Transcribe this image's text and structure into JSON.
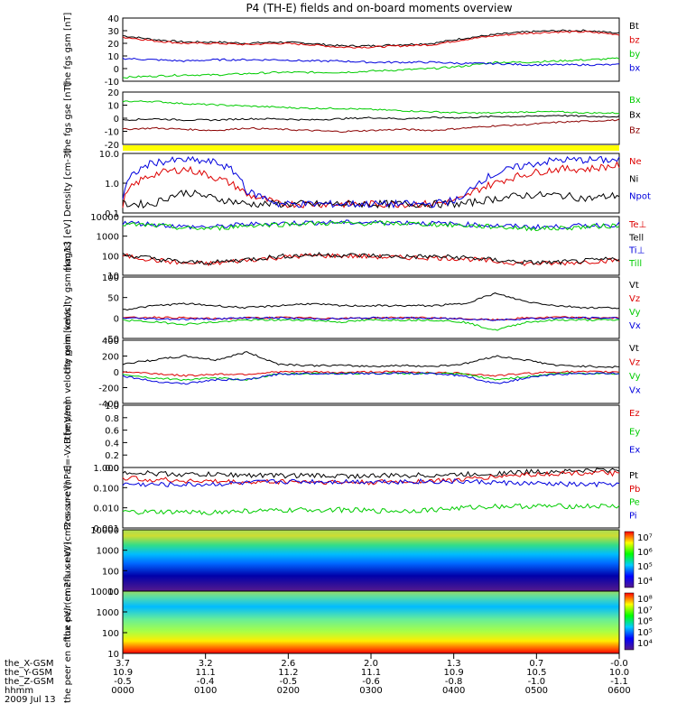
{
  "title": "P4 (TH-E) fields and on-board moments overview",
  "colors": {
    "black": "#000000",
    "red": "#dd0000",
    "blue": "#0000dd",
    "green": "#00cc00",
    "darkred": "#8b0000",
    "yellow": "#ffff00"
  },
  "chart_data": [
    {
      "type": "line",
      "name": "fgs",
      "ylabel": "the fgs gsm [nT]",
      "ylim": [
        -10,
        40
      ],
      "yticks": [
        "40",
        "30",
        "20",
        "10",
        "0",
        "-10"
      ],
      "series": [
        {
          "name": "Bt",
          "color": "#000000",
          "values": [
            26,
            23,
            21,
            21,
            20,
            21,
            20,
            18,
            18,
            19,
            20,
            24,
            27,
            29,
            30,
            30,
            28
          ]
        },
        {
          "name": "bz",
          "color": "#dd0000",
          "values": [
            25,
            22,
            20,
            20,
            19,
            20,
            19,
            17,
            17,
            18,
            19,
            23,
            26,
            28,
            29,
            29,
            27
          ]
        },
        {
          "name": "by",
          "color": "#00cc00",
          "values": [
            -7,
            -6,
            -5,
            -5,
            -4,
            -3,
            -3,
            -3,
            -2,
            -1,
            0,
            2,
            5,
            5,
            6,
            7,
            8
          ]
        },
        {
          "name": "bx",
          "color": "#0000dd",
          "values": [
            8,
            7,
            6,
            7,
            7,
            7,
            6,
            6,
            5,
            5,
            5,
            4,
            4,
            3,
            3,
            3,
            3
          ]
        }
      ]
    },
    {
      "type": "line",
      "name": "fgs-gse",
      "ylabel": "the fgs gse [nT]",
      "ylim": [
        -25,
        20
      ],
      "yticks": [
        "20",
        "10",
        "0",
        "-10",
        "-20"
      ],
      "series": [
        {
          "name": "Bx",
          "color": "#00cc00",
          "values": [
            12,
            12,
            10,
            9,
            8,
            7,
            6,
            6,
            5,
            4,
            3,
            2,
            2,
            3,
            3,
            2,
            2
          ]
        },
        {
          "name": "Bx",
          "color": "#000000",
          "values": [
            -4,
            -3,
            -4,
            -4,
            -3,
            -3,
            -4,
            -3,
            -2,
            -3,
            -2,
            -2,
            -1,
            -1,
            0,
            -1,
            -1
          ]
        },
        {
          "name": "Bz",
          "color": "#8b0000",
          "values": [
            -12,
            -11,
            -12,
            -13,
            -11,
            -12,
            -13,
            -14,
            -13,
            -12,
            -13,
            -11,
            -9,
            -8,
            -6,
            -5,
            -4
          ]
        }
      ]
    },
    {
      "type": "line",
      "name": "density",
      "ylabel": "Density [cm-3]",
      "ylim": [
        0.1,
        10
      ],
      "log": true,
      "yticks": [
        "10.0",
        "1.0",
        "0.1"
      ],
      "series": [
        {
          "name": "Ne",
          "color": "#dd0000",
          "values": [
            0.2,
            2.0,
            3.0,
            1.5,
            0.4,
            0.2,
            0.2,
            0.2,
            0.2,
            0.2,
            0.2,
            0.3,
            1.0,
            2.0,
            3.0,
            3.0,
            4.0
          ]
        },
        {
          "name": "Ni",
          "color": "#000000",
          "values": [
            0.2,
            0.2,
            0.5,
            0.3,
            0.2,
            0.2,
            0.2,
            0.2,
            0.2,
            0.2,
            0.2,
            0.2,
            0.3,
            0.4,
            0.4,
            0.3,
            0.4
          ]
        },
        {
          "name": "Npot",
          "color": "#0000dd",
          "values": [
            0.3,
            5.0,
            6.0,
            5.0,
            0.5,
            0.2,
            0.2,
            0.2,
            0.2,
            0.2,
            0.2,
            0.3,
            2.0,
            4.0,
            6.0,
            6.0,
            6.0
          ]
        }
      ]
    },
    {
      "type": "line",
      "name": "temperature",
      "ylabel": "mag13 [eV]",
      "ylim": [
        10,
        10000
      ],
      "log": true,
      "yticks": [
        "10000",
        "1000",
        "100",
        "10"
      ],
      "series": [
        {
          "name": "Te⊥",
          "color": "#dd0000",
          "values": [
            100,
            60,
            40,
            40,
            60,
            80,
            100,
            100,
            90,
            80,
            80,
            70,
            50,
            40,
            40,
            50,
            60
          ]
        },
        {
          "name": "Tell",
          "color": "#000000",
          "values": [
            110,
            70,
            45,
            45,
            65,
            90,
            110,
            110,
            100,
            90,
            90,
            80,
            60,
            45,
            45,
            55,
            70
          ]
        },
        {
          "name": "Ti⊥",
          "color": "#0000dd",
          "values": [
            5000,
            4000,
            3000,
            3000,
            4000,
            4500,
            5000,
            5000,
            5000,
            5000,
            4500,
            4000,
            3500,
            3000,
            3000,
            3500,
            4000
          ]
        },
        {
          "name": "Till",
          "color": "#00cc00",
          "values": [
            4000,
            3500,
            2500,
            2500,
            3500,
            4000,
            4500,
            4500,
            4500,
            4500,
            4000,
            3500,
            3000,
            2500,
            2500,
            3000,
            3500
          ]
        }
      ]
    },
    {
      "type": "line",
      "name": "peim-velocity",
      "ylabel": "the peim velocity gsm [km/s]",
      "ylim": [
        -50,
        100
      ],
      "yticks": [
        "100",
        "50",
        "0",
        "-50"
      ],
      "series": [
        {
          "name": "Vt",
          "color": "#000000",
          "values": [
            20,
            30,
            35,
            30,
            25,
            30,
            35,
            30,
            30,
            30,
            30,
            35,
            60,
            40,
            30,
            25,
            25
          ]
        },
        {
          "name": "Vz",
          "color": "#dd0000",
          "values": [
            0,
            2,
            0,
            -2,
            0,
            1,
            0,
            -1,
            0,
            1,
            0,
            -2,
            -5,
            0,
            2,
            0,
            0
          ]
        },
        {
          "name": "Vy",
          "color": "#00cc00",
          "values": [
            -5,
            -10,
            -15,
            -10,
            -5,
            -5,
            -5,
            -10,
            -5,
            -5,
            -5,
            -10,
            -30,
            -10,
            -5,
            -5,
            -5
          ]
        },
        {
          "name": "Vx",
          "color": "#0000dd",
          "values": [
            0,
            -2,
            -3,
            -2,
            0,
            0,
            -2,
            -2,
            0,
            0,
            -1,
            -2,
            -5,
            -2,
            0,
            0,
            0
          ]
        }
      ]
    },
    {
      "type": "line",
      "name": "peem-velocity",
      "ylabel": "the peem velocity gsm [km/s]",
      "ylim": [
        -400,
        400
      ],
      "yticks": [
        "400",
        "200",
        "0",
        "-200",
        "-400"
      ],
      "series": [
        {
          "name": "Vt",
          "color": "#000000",
          "values": [
            100,
            150,
            200,
            150,
            250,
            100,
            80,
            80,
            70,
            80,
            70,
            100,
            200,
            150,
            80,
            70,
            60
          ]
        },
        {
          "name": "Vz",
          "color": "#dd0000",
          "values": [
            0,
            -20,
            -50,
            -30,
            -30,
            0,
            0,
            -10,
            0,
            0,
            -10,
            -20,
            -50,
            -20,
            0,
            0,
            0
          ]
        },
        {
          "name": "Vy",
          "color": "#00cc00",
          "values": [
            -30,
            -80,
            -100,
            -80,
            -100,
            -30,
            -20,
            -20,
            -20,
            -20,
            -20,
            -30,
            -100,
            -60,
            -20,
            -20,
            -20
          ]
        },
        {
          "name": "Vx",
          "color": "#0000dd",
          "values": [
            -50,
            -120,
            -150,
            -100,
            -100,
            -30,
            -20,
            -20,
            -20,
            -20,
            -20,
            -50,
            -150,
            -80,
            -30,
            -20,
            -20
          ]
        }
      ]
    },
    {
      "type": "line",
      "name": "efield",
      "ylabel": "E=-VxB [mV/m]",
      "ylim": [
        0,
        1
      ],
      "yticks": [
        "1.0",
        "0.8",
        "0.6",
        "0.4",
        "0.2",
        "0.0"
      ],
      "series": [
        {
          "name": "Ez",
          "color": "#dd0000",
          "values": []
        },
        {
          "name": "Ey",
          "color": "#00cc00",
          "values": []
        },
        {
          "name": "Ex",
          "color": "#0000dd",
          "values": []
        }
      ]
    },
    {
      "type": "line",
      "name": "pressure",
      "ylabel": "Pressure [nPa]",
      "ylim": [
        0.001,
        1
      ],
      "log": true,
      "yticks": [
        "1.000",
        "0.100",
        "0.010",
        "0.001"
      ],
      "series": [
        {
          "name": "Pt",
          "color": "#000000",
          "values": [
            0.6,
            0.5,
            0.45,
            0.45,
            0.42,
            0.4,
            0.4,
            0.38,
            0.38,
            0.4,
            0.42,
            0.45,
            0.5,
            0.6,
            0.65,
            0.7,
            0.75
          ]
        },
        {
          "name": "Pb",
          "color": "#dd0000",
          "values": [
            0.3,
            0.25,
            0.22,
            0.2,
            0.18,
            0.2,
            0.2,
            0.18,
            0.18,
            0.2,
            0.22,
            0.25,
            0.35,
            0.45,
            0.5,
            0.55,
            0.5
          ]
        },
        {
          "name": "Pe",
          "color": "#00cc00",
          "values": [
            0.006,
            0.006,
            0.006,
            0.006,
            0.007,
            0.007,
            0.008,
            0.008,
            0.007,
            0.007,
            0.008,
            0.01,
            0.012,
            0.012,
            0.012,
            0.012,
            0.012
          ]
        },
        {
          "name": "Pi",
          "color": "#0000dd",
          "values": [
            0.15,
            0.14,
            0.14,
            0.15,
            0.17,
            0.2,
            0.2,
            0.2,
            0.2,
            0.2,
            0.2,
            0.2,
            0.18,
            0.16,
            0.15,
            0.14,
            0.15
          ]
        }
      ]
    },
    {
      "type": "heatmap",
      "name": "peir",
      "ylabel": "the peir en eflux eV/ (cm2-s- sr-eV)",
      "ylim": [
        10,
        20000
      ],
      "log": true,
      "yticks": [
        "10000",
        "1000",
        "100",
        "10"
      ],
      "colorbar_ticks": [
        "10⁷",
        "10⁶",
        "10⁵",
        "10⁴"
      ]
    },
    {
      "type": "heatmap",
      "name": "peer",
      "ylabel": "the peer en eflux eV/ (cm2-s- sr-eV)",
      "ylim": [
        10,
        20000
      ],
      "log": true,
      "yticks": [
        "10000",
        "1000",
        "100",
        "10"
      ],
      "colorbar_ticks": [
        "10⁸",
        "10⁷",
        "10⁶",
        "10⁵",
        "10⁴"
      ]
    }
  ],
  "axis_footer": {
    "rows": [
      {
        "label": "the_X-GSM",
        "values": [
          "3.7",
          "3.2",
          "2.6",
          "2.0",
          "1.3",
          "0.7",
          "-0.0"
        ]
      },
      {
        "label": "the_Y-GSM",
        "values": [
          "10.9",
          "11.1",
          "11.2",
          "11.1",
          "10.9",
          "10.5",
          "10.0"
        ]
      },
      {
        "label": "the_Z-GSM",
        "values": [
          "-0.5",
          "-0.4",
          "-0.5",
          "-0.6",
          "-0.8",
          "-1.0",
          "-1.1"
        ]
      },
      {
        "label": "hhmm",
        "values": [
          "0000",
          "0100",
          "0200",
          "0300",
          "0400",
          "0500",
          "0600"
        ]
      }
    ],
    "date": "2009 Jul 13"
  }
}
